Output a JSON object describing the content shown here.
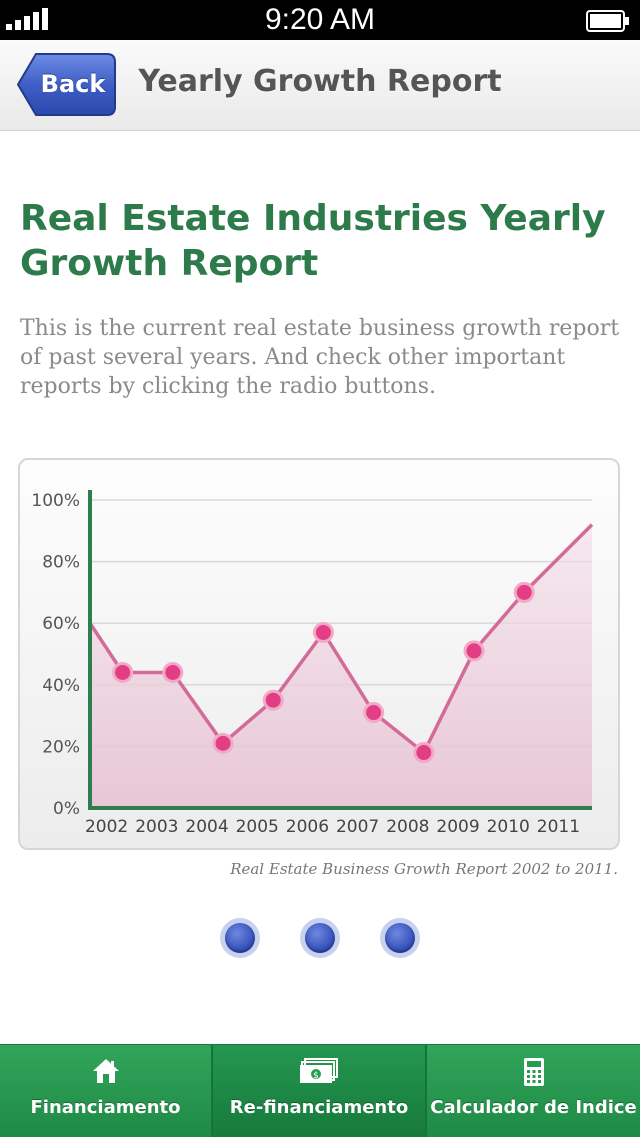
{
  "status_bar": {
    "time": "9:20 AM"
  },
  "nav": {
    "back_label": "Back",
    "title": "Yearly Growth Report"
  },
  "content": {
    "title": "Real Estate Industries Yearly Growth Report",
    "description": "This is the current real estate business growth report of past several years. And check other important reports by clicking the radio buttons.",
    "caption": "Real Estate Business Growth Report 2002 to 2011."
  },
  "chart_data": {
    "type": "area",
    "x": [
      2001.35,
      2002,
      2003,
      2004,
      2005,
      2006,
      2007,
      2008,
      2009,
      2010,
      2011.35
    ],
    "y": [
      60,
      44,
      44,
      21,
      35,
      57,
      31,
      18,
      51,
      70,
      92
    ],
    "marked_x": [
      2002,
      2003,
      2004,
      2005,
      2006,
      2007,
      2008,
      2009,
      2010
    ],
    "categories": [
      "2002",
      "2003",
      "2004",
      "2005",
      "2006",
      "2007",
      "2008",
      "2009",
      "2010",
      "2011"
    ],
    "y_ticks": [
      "0%",
      "20%",
      "40%",
      "60%",
      "80%",
      "100%"
    ],
    "ylim": [
      0,
      100
    ],
    "grid": true,
    "line_color": "#d46a9a",
    "marker_color": "#e23e85",
    "axis_color": "#2e7d4f"
  },
  "radio_buttons": [
    {
      "name": "report-1",
      "selected": false
    },
    {
      "name": "report-2",
      "selected": false
    },
    {
      "name": "report-3",
      "selected": false
    }
  ],
  "tab_bar": {
    "items": [
      {
        "label": "Financiamento",
        "icon": "home-icon",
        "active": false
      },
      {
        "label": "Re-financiamento",
        "icon": "money-icon",
        "active": true
      },
      {
        "label": "Calculador de Indice",
        "icon": "calculator-icon",
        "active": false
      }
    ]
  },
  "colors": {
    "title_green": "#2d7a4a",
    "tab_green": "#2a9c52",
    "back_blue": "#3d5fc4"
  }
}
